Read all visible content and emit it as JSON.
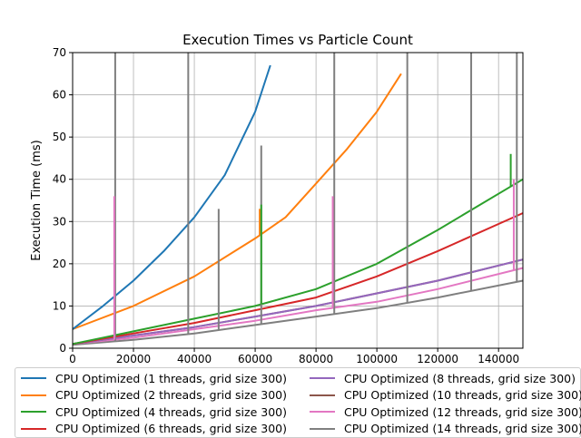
{
  "chart_data": {
    "type": "line",
    "title": "Execution Times vs Particle Count",
    "xlabel": "",
    "ylabel": "Execution Time (ms)",
    "xlim": [
      0,
      148000
    ],
    "ylim": [
      0,
      70
    ],
    "xticks": [
      0,
      20000,
      40000,
      60000,
      80000,
      100000,
      120000,
      140000
    ],
    "yticks": [
      0,
      10,
      20,
      30,
      40,
      50,
      60,
      70
    ],
    "grid": true,
    "legend_position": "below",
    "series": [
      {
        "name": "CPU Optimized (1 threads, grid size 300)",
        "color": "#1f77b4",
        "x": [
          0,
          10000,
          20000,
          30000,
          40000,
          50000,
          60000,
          65000
        ],
        "y": [
          4.5,
          10,
          16,
          23,
          31,
          41,
          56,
          67
        ]
      },
      {
        "name": "CPU Optimized (2 threads, grid size 300)",
        "color": "#ff7f0e",
        "x": [
          0,
          20000,
          40000,
          60000,
          70000,
          80000,
          90000,
          100000,
          108000
        ],
        "y": [
          4.5,
          10,
          17,
          26,
          31,
          39,
          47,
          56,
          65
        ]
      },
      {
        "name": "CPU Optimized (4 threads, grid size 300)",
        "color": "#2ca02c",
        "x": [
          0,
          20000,
          40000,
          60000,
          80000,
          100000,
          120000,
          148000
        ],
        "y": [
          1,
          4,
          7,
          10,
          14,
          20,
          28,
          40
        ]
      },
      {
        "name": "CPU Optimized (6 threads, grid size 300)",
        "color": "#d62728",
        "x": [
          0,
          20000,
          40000,
          60000,
          80000,
          100000,
          120000,
          148000
        ],
        "y": [
          1,
          3.5,
          6,
          9,
          12,
          17,
          23,
          32
        ]
      },
      {
        "name": "CPU Optimized (8 threads, grid size 300)",
        "color": "#9467bd",
        "x": [
          0,
          20000,
          40000,
          60000,
          80000,
          100000,
          120000,
          148000
        ],
        "y": [
          1,
          3,
          5,
          7.5,
          10,
          13,
          16,
          21
        ]
      },
      {
        "name": "CPU Optimized (10 threads, grid size 300)",
        "color": "#8c564b",
        "x": [
          0,
          20000,
          40000,
          60000,
          80000,
          100000,
          120000,
          148000
        ],
        "y": [
          1,
          3,
          5,
          7.5,
          10,
          13,
          16,
          21
        ]
      },
      {
        "name": "CPU Optimized (12 threads, grid size 300)",
        "color": "#e377c2",
        "x": [
          0,
          20000,
          40000,
          60000,
          80000,
          100000,
          120000,
          148000
        ],
        "y": [
          1,
          2.5,
          4.5,
          6.5,
          9,
          11,
          14,
          19
        ]
      },
      {
        "name": "CPU Optimized (14 threads, grid size 300)",
        "color": "#7f7f7f",
        "x": [
          0,
          20000,
          40000,
          60000,
          80000,
          100000,
          120000,
          148000
        ],
        "y": [
          0.8,
          2,
          3.5,
          5.5,
          7.5,
          9.5,
          12,
          16
        ]
      }
    ],
    "spikes": [
      {
        "series": 7,
        "x": 14000,
        "y": 70
      },
      {
        "series": 7,
        "x": 38000,
        "y": 70
      },
      {
        "series": 7,
        "x": 48000,
        "y": 33
      },
      {
        "series": 7,
        "x": 62000,
        "y": 48
      },
      {
        "series": 7,
        "x": 86000,
        "y": 70
      },
      {
        "series": 7,
        "x": 110000,
        "y": 70
      },
      {
        "series": 7,
        "x": 131000,
        "y": 70
      },
      {
        "series": 7,
        "x": 146000,
        "y": 70
      },
      {
        "series": 6,
        "x": 13700,
        "y": 36
      },
      {
        "series": 6,
        "x": 85500,
        "y": 36
      },
      {
        "series": 6,
        "x": 145000,
        "y": 40
      },
      {
        "series": 2,
        "x": 144000,
        "y": 46
      },
      {
        "series": 1,
        "x": 61500,
        "y": 33
      },
      {
        "series": 2,
        "x": 62000,
        "y": 34
      }
    ]
  }
}
